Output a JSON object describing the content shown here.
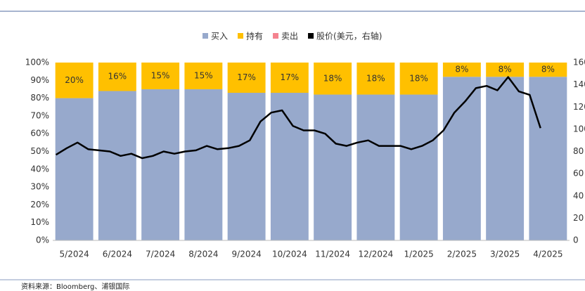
{
  "chart_data": {
    "type": "bar",
    "stacked": true,
    "categories": [
      "5/2024",
      "6/2024",
      "7/2024",
      "8/2024",
      "9/2024",
      "10/2024",
      "11/2024",
      "12/2024",
      "1/2025",
      "2/2025",
      "3/2025",
      "4/2025"
    ],
    "series": [
      {
        "name": "买入",
        "color": "#97a9cc",
        "values": [
          80,
          84,
          85,
          85,
          83,
          83,
          82,
          82,
          82,
          92,
          92,
          92
        ]
      },
      {
        "name": "持有",
        "color": "#ffc000",
        "values": [
          20,
          16,
          15,
          15,
          17,
          17,
          18,
          18,
          18,
          8,
          8,
          8
        ],
        "value_labels": [
          "20%",
          "16%",
          "15%",
          "15%",
          "17%",
          "17%",
          "18%",
          "18%",
          "18%",
          "8%",
          "8%",
          "8%"
        ]
      },
      {
        "name": "卖出",
        "color": "#f4828f",
        "values": [
          0,
          0,
          0,
          0,
          0,
          0,
          0,
          0,
          0,
          0,
          0,
          0
        ]
      }
    ],
    "line": {
      "type": "line",
      "name": "股价(美元，右轴)",
      "color": "#000000",
      "axis": "y2",
      "values": [
        77,
        83,
        88,
        82,
        81,
        80,
        76,
        78,
        74,
        76,
        80,
        78,
        80,
        81,
        85,
        82,
        83,
        85,
        90,
        107,
        115,
        117,
        103,
        99,
        99,
        96,
        87,
        85,
        88,
        90,
        85,
        85,
        85,
        82,
        85,
        90,
        99,
        115,
        125,
        137,
        139,
        135,
        147,
        134,
        131,
        101
      ]
    },
    "ylim": [
      0,
      100
    ],
    "yticks": [
      {
        "value": 0,
        "label": "0%"
      },
      {
        "value": 10,
        "label": "10%"
      },
      {
        "value": 20,
        "label": "20%"
      },
      {
        "value": 30,
        "label": "30%"
      },
      {
        "value": 40,
        "label": "40%"
      },
      {
        "value": 50,
        "label": "50%"
      },
      {
        "value": 60,
        "label": "60%"
      },
      {
        "value": 70,
        "label": "70%"
      },
      {
        "value": 80,
        "label": "80%"
      },
      {
        "value": 90,
        "label": "90%"
      },
      {
        "value": 100,
        "label": "100%"
      }
    ],
    "y2lim": [
      0,
      160
    ],
    "y2ticks": [
      0,
      20,
      40,
      60,
      80,
      100,
      120,
      140,
      160
    ],
    "legend": "top"
  },
  "source": "资料来源：Bloomberg、浦银国际"
}
